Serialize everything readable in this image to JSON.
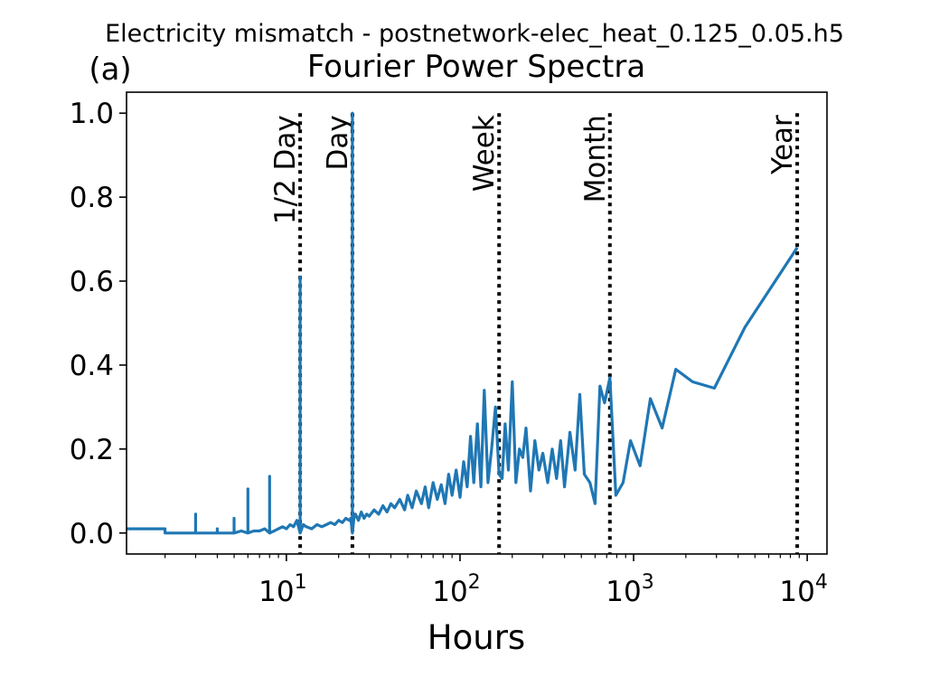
{
  "suptitle": "Electricity mismatch - postnetwork-elec_heat_0.125_0.05.h5",
  "panel_label": "(a)",
  "chart_data": {
    "type": "line",
    "title": "Fourier Power Spectra",
    "xlabel": "Hours",
    "ylabel": "",
    "xscale": "log",
    "xlim": [
      1.2,
      13000
    ],
    "ylim": [
      -0.05,
      1.05
    ],
    "yticks": [
      0.0,
      0.2,
      0.4,
      0.6,
      0.8,
      1.0
    ],
    "ytick_labels": [
      "0.0",
      "0.2",
      "0.4",
      "0.6",
      "0.8",
      "1.0"
    ],
    "xticks": [
      10,
      100,
      1000,
      10000
    ],
    "xtick_bases": [
      "10",
      "10",
      "10",
      "10"
    ],
    "xtick_exponents": [
      "1",
      "2",
      "3",
      "4"
    ],
    "grid": false,
    "line_color": "#1f77b4",
    "series": [
      {
        "x": [
          1.2,
          2.0,
          2.0,
          2.2,
          2.5,
          2.8,
          3.0,
          3.0,
          3.0,
          3.3,
          3.6,
          4.0,
          4.0,
          4.0,
          4.4,
          4.8,
          5.0,
          5.0,
          5.0,
          5.5,
          6.0,
          6.0,
          6.0,
          6.5,
          7.0,
          7.5,
          8.0,
          8.0,
          8.0,
          8.5,
          9.0,
          9.5,
          10.0,
          10.5,
          11.0,
          11.5,
          12.0,
          12.0,
          12.0,
          12.5,
          13.0,
          14.0,
          15.0,
          16.0,
          17.0,
          18.0,
          19.0,
          20.0,
          21.0,
          22.0,
          23.0,
          23.5,
          24.0,
          24.0,
          24.0,
          24.5,
          25.0,
          26.0,
          27.0,
          28.0,
          29.0,
          30.0,
          32.0,
          34.0,
          36.0,
          38.0,
          40.0,
          42.0,
          45.0,
          48.0,
          50.0,
          53.0,
          56.0,
          60.0,
          63.0,
          66.0,
          70.0,
          74.0,
          78.0,
          82.0,
          86.0,
          90.0,
          95.0,
          100.0,
          105.0,
          110.0,
          115.0,
          120.0,
          126.0,
          132.0,
          138.0,
          145.0,
          152.0,
          160.0,
          168.0,
          175.0,
          182.0,
          190.0,
          200.0,
          210.0,
          220.0,
          230.0,
          240.0,
          255.0,
          270.0,
          285.0,
          300.0,
          320.0,
          340.0,
          360.0,
          380.0,
          400.0,
          430.0,
          460.0,
          490.0,
          520.0,
          560.0,
          600.0,
          640.0,
          680.0,
          730.0,
          790.0,
          870.0,
          960.0,
          1090.0,
          1250.0,
          1460.0,
          1750.0,
          2190.0,
          2920.0,
          4380.0,
          8760.0
        ],
        "y": [
          0.01,
          0.01,
          0.0,
          0.0,
          0.0,
          0.0,
          0.0,
          0.045,
          0.0,
          0.0,
          0.0,
          0.0,
          0.01,
          0.0,
          0.0,
          0.0,
          0.0,
          0.035,
          0.0,
          0.005,
          0.0,
          0.105,
          0.0,
          0.005,
          0.005,
          0.01,
          0.0,
          0.135,
          0.0,
          0.005,
          0.01,
          0.015,
          0.01,
          0.02,
          0.015,
          0.03,
          0.0,
          0.61,
          0.0,
          0.02,
          0.015,
          0.01,
          0.02,
          0.015,
          0.02,
          0.025,
          0.02,
          0.03,
          0.025,
          0.035,
          0.03,
          0.035,
          0.0,
          1.0,
          0.0,
          0.035,
          0.045,
          0.03,
          0.05,
          0.035,
          0.045,
          0.04,
          0.055,
          0.045,
          0.065,
          0.05,
          0.07,
          0.06,
          0.08,
          0.055,
          0.09,
          0.06,
          0.1,
          0.07,
          0.11,
          0.06,
          0.12,
          0.08,
          0.115,
          0.07,
          0.14,
          0.09,
          0.15,
          0.085,
          0.17,
          0.11,
          0.23,
          0.12,
          0.26,
          0.11,
          0.34,
          0.12,
          0.2,
          0.3,
          0.14,
          0.13,
          0.26,
          0.15,
          0.36,
          0.12,
          0.2,
          0.18,
          0.25,
          0.1,
          0.22,
          0.15,
          0.19,
          0.12,
          0.2,
          0.13,
          0.22,
          0.11,
          0.24,
          0.15,
          0.33,
          0.14,
          0.12,
          0.07,
          0.35,
          0.31,
          0.37,
          0.09,
          0.12,
          0.22,
          0.16,
          0.32,
          0.25,
          0.39,
          0.36,
          0.345,
          0.49,
          0.68
        ]
      }
    ],
    "markers": [
      {
        "label": "1/2 Day",
        "x": 12
      },
      {
        "label": "Day",
        "x": 24
      },
      {
        "label": "Week",
        "x": 168
      },
      {
        "label": "Month",
        "x": 730
      },
      {
        "label": "Year",
        "x": 8760
      }
    ]
  }
}
